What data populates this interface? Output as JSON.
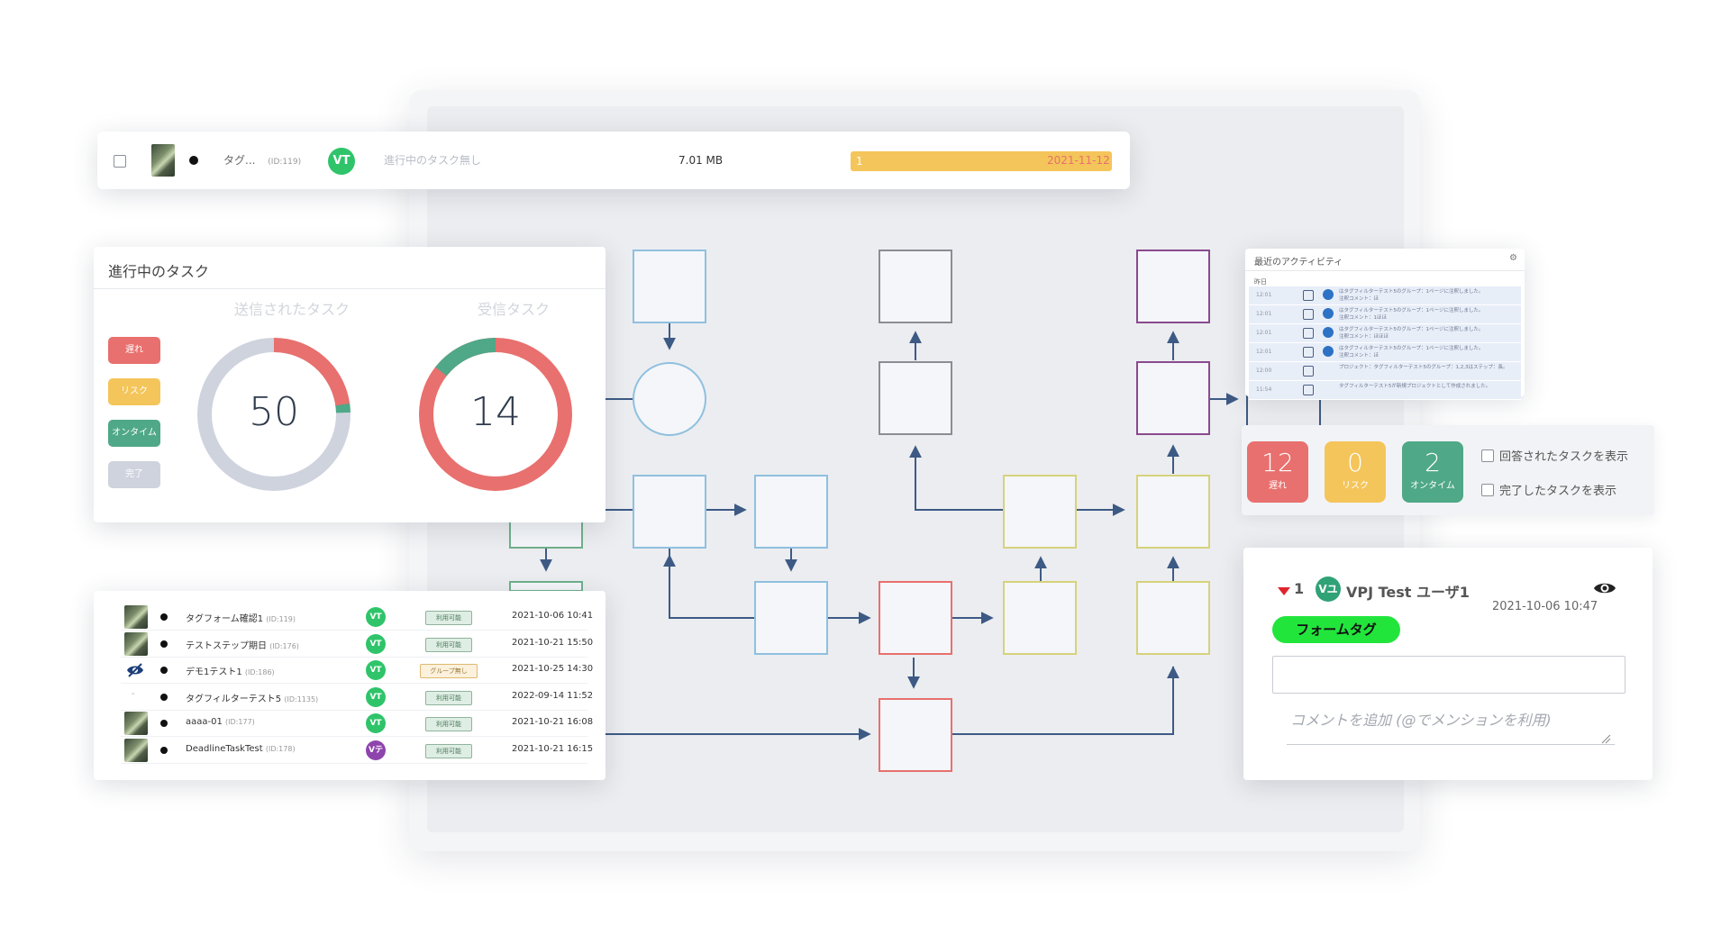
{
  "task_row": {
    "name": "タグ...",
    "id": "(ID:119)",
    "avatar": "VT",
    "status": "進行中のタスク無し",
    "size": "7.01 MB",
    "progress_label": "1",
    "progress": 1.0,
    "date": "2021-11-12"
  },
  "progress_card": {
    "title": "進行中のタスク",
    "legend": [
      "遅れ",
      "リスク",
      "オンタイム",
      "完了"
    ],
    "sent": {
      "title": "送信されたタスク",
      "value": "50"
    },
    "received": {
      "title": "受信タスク",
      "value": "14"
    }
  },
  "file_list": [
    {
      "name": "タグフォーム確認1",
      "id": "(ID:119)",
      "avatar": "VT",
      "status": "利用可能",
      "date": "2021-10-06 10:41",
      "thumb": "image"
    },
    {
      "name": "テストステップ期日",
      "id": "(ID:176)",
      "avatar": "VT",
      "status": "利用可能",
      "date": "2021-10-21 15:50",
      "thumb": "image"
    },
    {
      "name": "デモ1テスト1",
      "id": "(ID:186)",
      "avatar": "VT",
      "status": "グループ無し",
      "date": "2021-10-25 14:30",
      "thumb": "eye-slash-icon"
    },
    {
      "name": "タグフィルターテスト5",
      "id": "(ID:1135)",
      "avatar": "VT",
      "status": "利用可能",
      "date": "2022-09-14 11:52",
      "thumb": "dash"
    },
    {
      "name": "aaaa-01",
      "id": "(ID:177)",
      "avatar": "VT",
      "status": "利用可能",
      "date": "2021-10-21 16:08",
      "thumb": "image"
    },
    {
      "name": "DeadlineTaskTest",
      "id": "(ID:178)",
      "avatar": "Vテ",
      "status": "利用可能",
      "date": "2021-10-21 16:15",
      "thumb": "image"
    }
  ],
  "activity": {
    "title": "最近のアクティビティ",
    "day": "昨日",
    "rows": [
      {
        "time": "12:01",
        "msg": "はタグフィルターテスト5のグループ：1ページに注釈しました。",
        "msg2": "注釈コメント：ほ"
      },
      {
        "time": "12:01",
        "msg": "はタグフィルターテスト5のグループ：1ページに注釈しました。",
        "msg2": "注釈コメント：1ほほ"
      },
      {
        "time": "12:01",
        "msg": "はタグフィルターテスト5のグループ：1ページに注釈しました。",
        "msg2": "注釈コメント：ほほほ"
      },
      {
        "time": "12:01",
        "msg": "はタグフィルターテスト5のグループ：1ページに注釈しました。",
        "msg2": "注釈コメント：ほ"
      },
      {
        "time": "12:00",
        "msg": "プロジェクト：タグフィルターテスト5のグループ：1,2,3はステップ：長。",
        "msg2": ""
      },
      {
        "time": "11:54",
        "msg": "タグフィルターテスト5が新規プロジェクトとして作成されました。",
        "msg2": ""
      }
    ]
  },
  "counters": [
    {
      "value": "12",
      "label": "遅れ",
      "color": "#e8706e"
    },
    {
      "value": "0",
      "label": "リスク",
      "color": "#f4c55a"
    },
    {
      "value": "2",
      "label": "オンタイム",
      "color": "#4fa887"
    }
  ],
  "options": {
    "show_answered": "回答されたタスクを表示",
    "show_completed": "完了したタスクを表示"
  },
  "comment": {
    "count": "1",
    "avatar": "Vユ",
    "user": "VPJ Test ユーザ1",
    "timestamp": "2021-10-06 10:47",
    "tag": "フォームタグ",
    "placeholder": "コメントを追加 (@でメンションを利用)"
  },
  "colors": {
    "late": "#e8706e",
    "risk": "#f4c55a",
    "ontime": "#4fa887",
    "done": "#ced3de",
    "avatar_green": "#2fc46a",
    "avatar_purple": "#8e44ad"
  }
}
